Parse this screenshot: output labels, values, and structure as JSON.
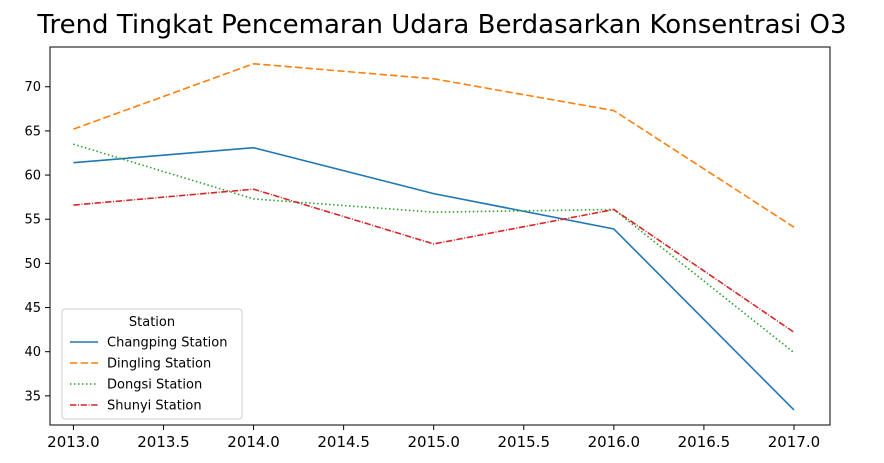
{
  "chart_data": {
    "type": "line",
    "title": "Trend Tingkat Pencemaran Udara Berdasarkan Konsentrasi O3",
    "xlabel": "",
    "ylabel": "",
    "x": [
      2013,
      2014,
      2015,
      2016,
      2017
    ],
    "xlim": [
      2012.87,
      2017.2
    ],
    "ylim": [
      31.7,
      74.5
    ],
    "xticks": [
      "2013.0",
      "2013.5",
      "2014.0",
      "2014.5",
      "2015.0",
      "2015.5",
      "2016.0",
      "2016.5",
      "2017.0"
    ],
    "yticks": [
      "35",
      "40",
      "45",
      "50",
      "55",
      "60",
      "65",
      "70"
    ],
    "legend": {
      "title": "Station",
      "placement": "lower-left"
    },
    "grid": false,
    "series": [
      {
        "name": "Changping Station",
        "values": [
          61.4,
          63.1,
          57.9,
          53.9,
          33.4
        ],
        "color": "#1f77b4",
        "dash": "solid"
      },
      {
        "name": "Dingling Station",
        "values": [
          65.2,
          72.6,
          70.9,
          67.3,
          54.1
        ],
        "color": "#ff7f0e",
        "dash": "dashed"
      },
      {
        "name": "Dongsi Station",
        "values": [
          63.5,
          57.3,
          55.8,
          56.1,
          39.9
        ],
        "color": "#2ca02c",
        "dash": "dotted"
      },
      {
        "name": "Shunyi Station",
        "values": [
          56.6,
          58.4,
          52.2,
          56.1,
          42.2
        ],
        "color": "#d62728",
        "dash": "dashdot"
      }
    ]
  }
}
